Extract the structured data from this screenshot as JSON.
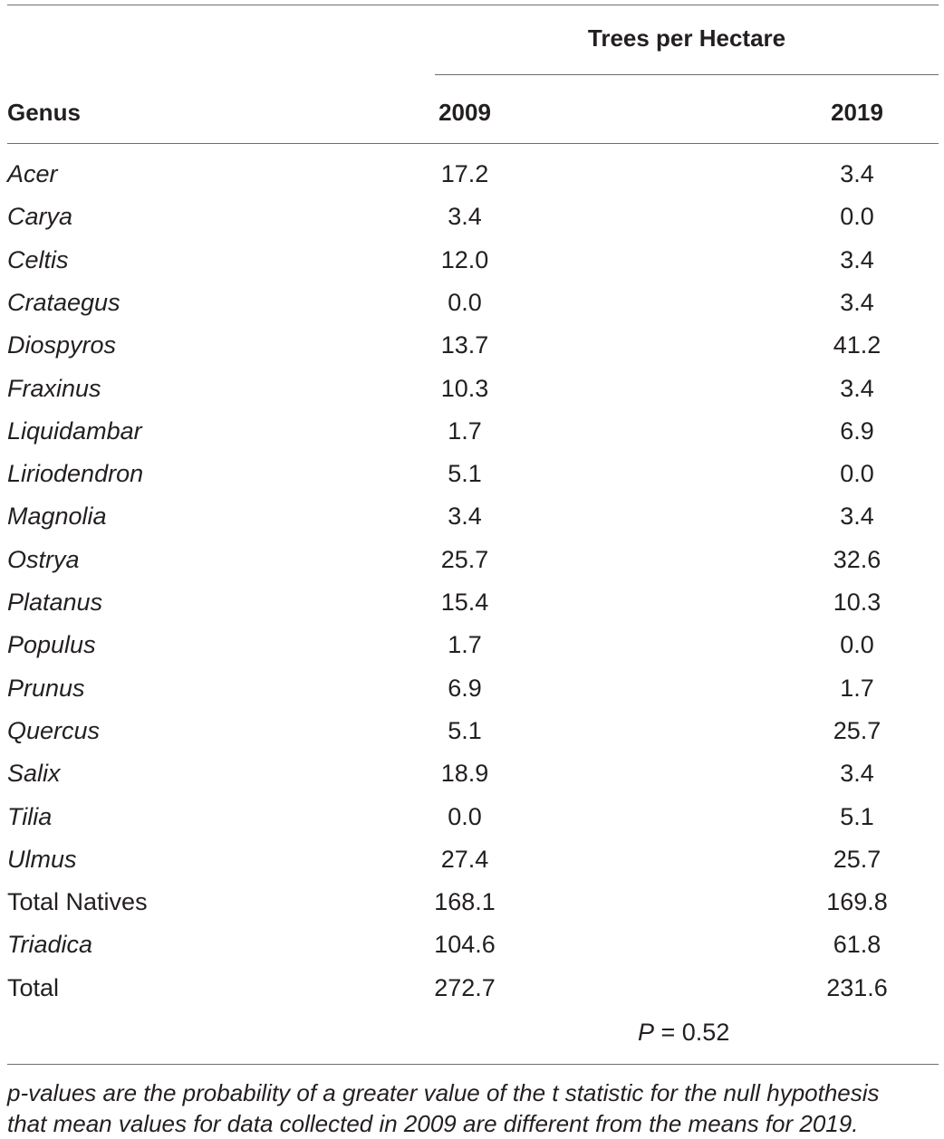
{
  "table": {
    "group_header": "Trees per Hectare",
    "headers": [
      "Genus",
      "2009",
      "2019"
    ],
    "rows": [
      {
        "genus": "Acer",
        "italic": true,
        "y2009": "17.2",
        "y2019": "3.4"
      },
      {
        "genus": "Carya",
        "italic": true,
        "y2009": "3.4",
        "y2019": "0.0"
      },
      {
        "genus": "Celtis",
        "italic": true,
        "y2009": "12.0",
        "y2019": "3.4"
      },
      {
        "genus": "Crataegus",
        "italic": true,
        "y2009": "0.0",
        "y2019": "3.4"
      },
      {
        "genus": "Diospyros",
        "italic": true,
        "y2009": "13.7",
        "y2019": "41.2"
      },
      {
        "genus": "Fraxinus",
        "italic": true,
        "y2009": "10.3",
        "y2019": "3.4"
      },
      {
        "genus": "Liquidambar",
        "italic": true,
        "y2009": "1.7",
        "y2019": "6.9"
      },
      {
        "genus": "Liriodendron",
        "italic": true,
        "y2009": "5.1",
        "y2019": "0.0"
      },
      {
        "genus": "Magnolia",
        "italic": true,
        "y2009": "3.4",
        "y2019": "3.4"
      },
      {
        "genus": "Ostrya",
        "italic": true,
        "y2009": "25.7",
        "y2019": "32.6"
      },
      {
        "genus": "Platanus",
        "italic": true,
        "y2009": "15.4",
        "y2019": "10.3"
      },
      {
        "genus": "Populus",
        "italic": true,
        "y2009": "1.7",
        "y2019": "0.0"
      },
      {
        "genus": "Prunus",
        "italic": true,
        "y2009": "6.9",
        "y2019": "1.7"
      },
      {
        "genus": "Quercus",
        "italic": true,
        "y2009": "5.1",
        "y2019": "25.7"
      },
      {
        "genus": "Salix",
        "italic": true,
        "y2009": "18.9",
        "y2019": "3.4"
      },
      {
        "genus": "Tilia",
        "italic": true,
        "y2009": "0.0",
        "y2019": "5.1"
      },
      {
        "genus": "Ulmus",
        "italic": true,
        "y2009": "27.4",
        "y2019": "25.7"
      },
      {
        "genus": "Total Natives",
        "italic": false,
        "y2009": "168.1",
        "y2019": "169.8"
      },
      {
        "genus": "Triadica",
        "italic": true,
        "y2009": "104.6",
        "y2019": "61.8"
      },
      {
        "genus": "Total",
        "italic": false,
        "y2009": "272.7",
        "y2019": "231.6"
      }
    ],
    "p_symbol": "P",
    "p_value": " = 0.52"
  },
  "footnote": {
    "line1": "p-values are the probability of a greater value of the t statistic for the null hypothesis",
    "line2": "that mean values for data collected in 2009 are different from the means for 2019."
  }
}
